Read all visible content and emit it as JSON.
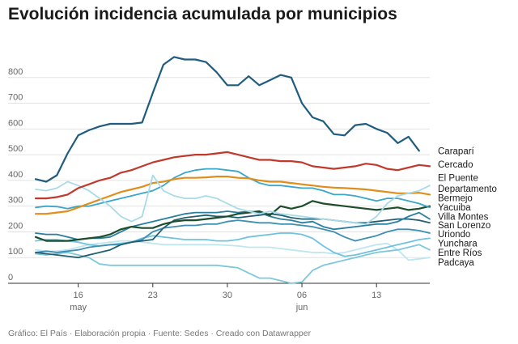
{
  "title": "Evolución incidencia acumulada por municipios",
  "footer": "Gráfico: El País · Elaboración propia · Fuente: Sedes · Creado con Datawrapper",
  "chart_data": {
    "type": "line",
    "title": "Evolución incidencia acumulada por municipios",
    "xlabel": "",
    "ylabel": "",
    "ylim": [
      0,
      900
    ],
    "yticks": [
      "0",
      "100",
      "200",
      "300",
      "400",
      "500",
      "600",
      "700",
      "800"
    ],
    "xticks": [
      {
        "label": "16",
        "sublabel": "may",
        "x": 4
      },
      {
        "label": "23",
        "sublabel": "",
        "x": 11
      },
      {
        "label": "30",
        "sublabel": "",
        "x": 18
      },
      {
        "label": "06",
        "sublabel": "jun",
        "x": 25
      },
      {
        "label": "13",
        "sublabel": "",
        "x": 32
      }
    ],
    "grid": true,
    "legend": "inline-right",
    "x": [
      0,
      1,
      2,
      3,
      4,
      5,
      6,
      7,
      8,
      9,
      10,
      11,
      12,
      13,
      14,
      15,
      16,
      17,
      18,
      19,
      20,
      21,
      22,
      23,
      24,
      25,
      26,
      27,
      28,
      29,
      30,
      31,
      32,
      33,
      34,
      35,
      36,
      37
    ],
    "series": [
      {
        "name": "Caraparí",
        "color": "#1f5c7f",
        "width": 2.2,
        "values": [
          405,
          395,
          420,
          505,
          575,
          595,
          610,
          620,
          620,
          620,
          625,
          740,
          850,
          880,
          870,
          870,
          860,
          820,
          770,
          770,
          805,
          770,
          790,
          810,
          800,
          700,
          645,
          630,
          580,
          575,
          615,
          620,
          600,
          585,
          545,
          570,
          515,
          null
        ]
      },
      {
        "name": "Cercado",
        "color": "#c0392b",
        "width": 2.2,
        "values": [
          330,
          330,
          335,
          345,
          370,
          385,
          400,
          410,
          430,
          440,
          455,
          470,
          480,
          490,
          495,
          500,
          500,
          505,
          510,
          500,
          490,
          480,
          480,
          475,
          475,
          470,
          455,
          450,
          445,
          450,
          455,
          465,
          460,
          445,
          440,
          450,
          460,
          455
        ]
      },
      {
        "name": "El Puente",
        "color": "#a8dbe8",
        "width": 1.8,
        "values": [
          365,
          360,
          370,
          395,
          380,
          360,
          330,
          300,
          260,
          240,
          260,
          420,
          360,
          340,
          330,
          330,
          340,
          330,
          310,
          290,
          280,
          270,
          280,
          270,
          265,
          260,
          255,
          250,
          245,
          240,
          235,
          230,
          260,
          310,
          340,
          350,
          360,
          380
        ]
      },
      {
        "name": "Departamento",
        "color": "#e08e1b",
        "width": 2.2,
        "values": [
          270,
          270,
          275,
          280,
          295,
          310,
          325,
          340,
          355,
          365,
          375,
          390,
          395,
          405,
          410,
          410,
          412,
          415,
          415,
          410,
          408,
          400,
          395,
          395,
          390,
          385,
          380,
          375,
          372,
          370,
          368,
          365,
          360,
          355,
          350,
          350,
          352,
          345
        ]
      },
      {
        "name": "Bermejo",
        "color": "#3aa6c9",
        "width": 1.8,
        "values": [
          295,
          300,
          298,
          290,
          300,
          300,
          310,
          320,
          330,
          340,
          350,
          360,
          380,
          410,
          430,
          440,
          445,
          445,
          440,
          435,
          410,
          390,
          380,
          380,
          375,
          370,
          370,
          360,
          345,
          345,
          340,
          330,
          320,
          330,
          330,
          320,
          310,
          295
        ]
      },
      {
        "name": "Yacuiba",
        "color": "#1d4d2d",
        "width": 2.2,
        "values": [
          180,
          165,
          165,
          165,
          170,
          175,
          180,
          190,
          210,
          220,
          215,
          215,
          230,
          240,
          245,
          245,
          250,
          255,
          260,
          270,
          275,
          280,
          265,
          300,
          290,
          300,
          320,
          310,
          305,
          300,
          295,
          290,
          285,
          290,
          295,
          285,
          290,
          300
        ]
      },
      {
        "name": "Villa Montes",
        "color": "#2a7fa1",
        "width": 1.8,
        "values": [
          195,
          190,
          190,
          180,
          170,
          175,
          175,
          180,
          200,
          220,
          230,
          240,
          250,
          260,
          270,
          275,
          275,
          275,
          280,
          275,
          280,
          275,
          260,
          250,
          245,
          235,
          240,
          220,
          210,
          215,
          220,
          225,
          230,
          230,
          240,
          260,
          275,
          250
        ]
      },
      {
        "name": "San Lorenzo",
        "color": "#225f73",
        "width": 1.8,
        "values": [
          120,
          115,
          110,
          105,
          100,
          110,
          120,
          130,
          150,
          160,
          165,
          170,
          215,
          245,
          255,
          260,
          265,
          260,
          260,
          255,
          260,
          265,
          270,
          265,
          255,
          250,
          250,
          250,
          245,
          240,
          235,
          235,
          240,
          245,
          250,
          250,
          245,
          235
        ]
      },
      {
        "name": "Uriondo",
        "color": "#3d8fb3",
        "width": 1.8,
        "values": [
          120,
          125,
          120,
          125,
          130,
          140,
          145,
          150,
          150,
          160,
          170,
          200,
          215,
          220,
          225,
          225,
          230,
          230,
          240,
          245,
          240,
          235,
          235,
          230,
          230,
          225,
          220,
          210,
          200,
          180,
          165,
          175,
          185,
          200,
          210,
          210,
          205,
          195
        ]
      },
      {
        "name": "Yunchara",
        "color": "#6fc3df",
        "width": 1.8,
        "values": [
          165,
          170,
          170,
          165,
          160,
          150,
          145,
          150,
          155,
          160,
          175,
          185,
          180,
          175,
          170,
          170,
          170,
          165,
          165,
          170,
          180,
          185,
          190,
          195,
          195,
          190,
          175,
          145,
          120,
          105,
          110,
          120,
          130,
          140,
          150,
          160,
          170,
          175
        ]
      },
      {
        "name": "Entre Ríos",
        "color": "#7ec8db",
        "width": 1.8,
        "values": [
          115,
          110,
          115,
          120,
          110,
          100,
          75,
          70,
          70,
          70,
          70,
          70,
          70,
          70,
          70,
          70,
          70,
          70,
          65,
          60,
          40,
          20,
          20,
          10,
          0,
          5,
          50,
          70,
          80,
          90,
          100,
          110,
          120,
          125,
          130,
          140,
          150,
          130
        ]
      },
      {
        "name": "Padcaya",
        "color": "#bfe6f0",
        "width": 1.8,
        "values": [
          130,
          125,
          125,
          130,
          140,
          150,
          155,
          160,
          165,
          165,
          160,
          155,
          150,
          150,
          150,
          150,
          150,
          150,
          148,
          145,
          140,
          140,
          140,
          135,
          130,
          125,
          120,
          120,
          115,
          120,
          130,
          140,
          150,
          155,
          130,
          90,
          95,
          100
        ]
      }
    ],
    "labels": [
      {
        "name": "Caraparí",
        "y": 515
      },
      {
        "name": "Cercado",
        "y": 462
      },
      {
        "name": "El Puente",
        "y": 410
      },
      {
        "name": "Departamento",
        "y": 368
      },
      {
        "name": "Bermejo",
        "y": 332
      },
      {
        "name": "Yacuiba",
        "y": 296
      },
      {
        "name": "Villa Montes",
        "y": 260
      },
      {
        "name": "San Lorenzo",
        "y": 226
      },
      {
        "name": "Uriondo",
        "y": 192
      },
      {
        "name": "Yunchara",
        "y": 156
      },
      {
        "name": "Entre Ríos",
        "y": 120
      },
      {
        "name": "Padcaya",
        "y": 82
      }
    ]
  }
}
